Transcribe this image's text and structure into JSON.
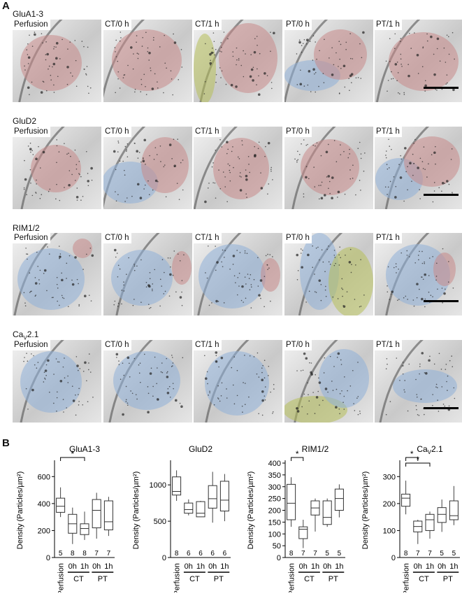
{
  "panel_a": {
    "letter": "A",
    "rows": [
      {
        "label": "GluA1-3",
        "tiles": [
          "Perfusion",
          "CT/0 h",
          "CT/1 h",
          "PT/0 h",
          "PT/1 h"
        ]
      },
      {
        "label": "GluD2",
        "tiles": [
          "Perfusion",
          "CT/0 h",
          "CT/1 h",
          "PT/0 h",
          "PT/1 h"
        ]
      },
      {
        "label": "RIM1/2",
        "tiles": [
          "Perfusion",
          "CT/0 h",
          "CT/1 h",
          "PT/0 h",
          "PT/1 h"
        ]
      },
      {
        "label_main": "Ca",
        "label_sub": "V",
        "label_rest": "2.1",
        "tiles": [
          "Perfusion",
          "CT/0 h",
          "CT/1 h",
          "PT/0 h",
          "PT/1 h"
        ]
      }
    ],
    "overlay_colors": {
      "red": "#c98b8b",
      "blue": "#8fb0d8",
      "green": "#b7bf5a"
    }
  },
  "panel_b": {
    "letter": "B",
    "ylabel": "Density (Particles/µm²)",
    "x_tick_labels": [
      "Perfusion",
      "0h",
      "1h",
      "0h",
      "1h"
    ],
    "group_labels": [
      "CT",
      "PT"
    ],
    "significance_marker": "*"
  },
  "chart_data": [
    {
      "type": "box",
      "title": "GluA1-3",
      "ylim": [
        0,
        700
      ],
      "yticks": [
        0,
        200,
        400,
        600
      ],
      "n": [
        5,
        8,
        8,
        7,
        7
      ],
      "boxes": [
        {
          "min": 300,
          "q1": 335,
          "median": 380,
          "q3": 440,
          "max": 520
        },
        {
          "min": 100,
          "q1": 180,
          "median": 250,
          "q3": 320,
          "max": 370
        },
        {
          "min": 130,
          "q1": 170,
          "median": 215,
          "q3": 250,
          "max": 340
        },
        {
          "min": 140,
          "q1": 220,
          "median": 350,
          "q3": 430,
          "max": 480
        },
        {
          "min": 160,
          "q1": 205,
          "median": 265,
          "q3": 420,
          "max": 450
        }
      ],
      "significance": [
        {
          "from": 0,
          "to": 2,
          "label": "*"
        }
      ]
    },
    {
      "type": "box",
      "title": "GluD2",
      "ylim": [
        0,
        1300
      ],
      "yticks": [
        0,
        500,
        1000
      ],
      "n": [
        8,
        6,
        6,
        6,
        6
      ],
      "boxes": [
        {
          "min": 780,
          "q1": 860,
          "median": 910,
          "q3": 1110,
          "max": 1200
        },
        {
          "min": 580,
          "q1": 610,
          "median": 660,
          "q3": 750,
          "max": 800
        },
        {
          "min": 560,
          "q1": 560,
          "median": 610,
          "q3": 770,
          "max": 780
        },
        {
          "min": 480,
          "q1": 680,
          "median": 810,
          "q3": 990,
          "max": 1180
        },
        {
          "min": 500,
          "q1": 640,
          "median": 790,
          "q3": 1050,
          "max": 1150
        }
      ],
      "significance": []
    },
    {
      "type": "box",
      "title": "RIM1/2",
      "ylim": [
        0,
        400
      ],
      "yticks": [
        0,
        50,
        100,
        150,
        200,
        250,
        300,
        350,
        400
      ],
      "n": [
        8,
        7,
        7,
        5,
        5
      ],
      "boxes": [
        {
          "min": 130,
          "q1": 160,
          "median": 230,
          "q3": 310,
          "max": 340
        },
        {
          "min": 40,
          "q1": 80,
          "median": 120,
          "q3": 130,
          "max": 160
        },
        {
          "min": 110,
          "q1": 180,
          "median": 210,
          "q3": 240,
          "max": 250
        },
        {
          "min": 130,
          "q1": 140,
          "median": 170,
          "q3": 240,
          "max": 250
        },
        {
          "min": 170,
          "q1": 200,
          "median": 250,
          "q3": 290,
          "max": 310
        }
      ],
      "significance": [
        {
          "from": 0,
          "to": 1,
          "label": "*"
        }
      ]
    },
    {
      "type": "box",
      "title": "CaV2.1",
      "title_main": "Ca",
      "title_sub": "V",
      "title_rest": "2.1",
      "ylim": [
        0,
        350
      ],
      "yticks": [
        0,
        100,
        200,
        300
      ],
      "n": [
        8,
        7,
        7,
        5,
        5
      ],
      "boxes": [
        {
          "min": 160,
          "q1": 190,
          "median": 220,
          "q3": 235,
          "max": 285
        },
        {
          "min": 50,
          "q1": 95,
          "median": 115,
          "q3": 135,
          "max": 140
        },
        {
          "min": 70,
          "q1": 100,
          "median": 140,
          "q3": 160,
          "max": 170
        },
        {
          "min": 95,
          "q1": 130,
          "median": 160,
          "q3": 185,
          "max": 215
        },
        {
          "min": 120,
          "q1": 140,
          "median": 155,
          "q3": 210,
          "max": 265
        }
      ],
      "significance": [
        {
          "from": 0,
          "to": 1,
          "label": "*"
        },
        {
          "from": 0,
          "to": 2,
          "label": "*"
        }
      ]
    }
  ]
}
